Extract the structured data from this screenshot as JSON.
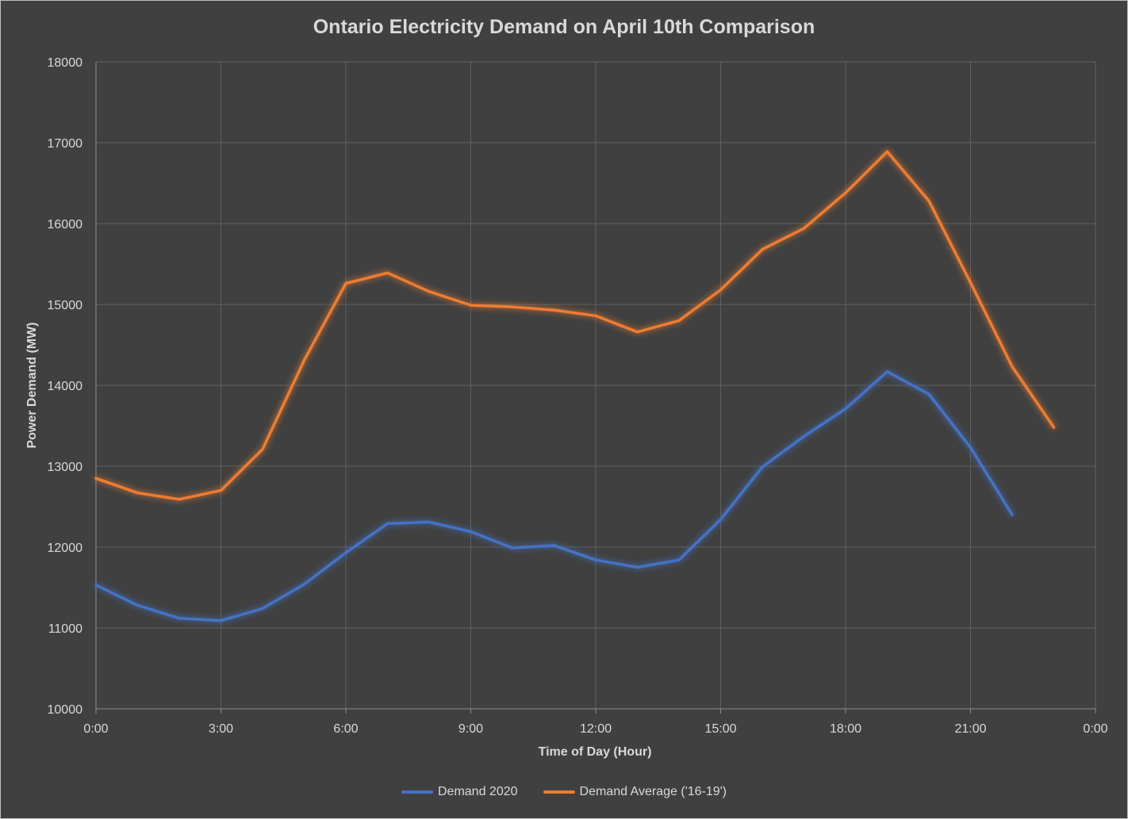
{
  "chart_data": {
    "type": "line",
    "title": "Ontario Electricity Demand on April 10th Comparison",
    "xlabel": "Time of Day (Hour)",
    "ylabel": "Power Demand (MW)",
    "x": [
      "0:00",
      "1:00",
      "2:00",
      "3:00",
      "4:00",
      "5:00",
      "6:00",
      "7:00",
      "8:00",
      "9:00",
      "10:00",
      "11:00",
      "12:00",
      "13:00",
      "14:00",
      "15:00",
      "16:00",
      "17:00",
      "18:00",
      "19:00",
      "20:00",
      "21:00",
      "22:00",
      "23:00"
    ],
    "x_ticks": [
      "0:00",
      "3:00",
      "6:00",
      "9:00",
      "12:00",
      "15:00",
      "18:00",
      "21:00",
      "0:00"
    ],
    "xlim": [
      "0:00",
      "24:00"
    ],
    "ylim": [
      10000,
      18000
    ],
    "y_ticks": [
      10000,
      11000,
      12000,
      13000,
      14000,
      15000,
      16000,
      17000,
      18000
    ],
    "grid": true,
    "legend_position": "bottom",
    "series": [
      {
        "name": "Demand 2020",
        "color": "#4472c4",
        "values": [
          11530,
          11280,
          11120,
          11090,
          11240,
          11540,
          11930,
          12290,
          12310,
          12190,
          11990,
          12020,
          11840,
          11750,
          11840,
          12340,
          12990,
          13370,
          13710,
          14170,
          13890,
          13230,
          12400,
          null
        ]
      },
      {
        "name": "Demand Average ('16-19')",
        "color": "#ed7d31",
        "values": [
          12850,
          12670,
          12590,
          12700,
          13210,
          14310,
          15260,
          15390,
          15160,
          14990,
          14970,
          14930,
          14860,
          14660,
          14800,
          15180,
          15680,
          15940,
          16380,
          16890,
          16280,
          15270,
          14230,
          13480
        ]
      }
    ]
  }
}
